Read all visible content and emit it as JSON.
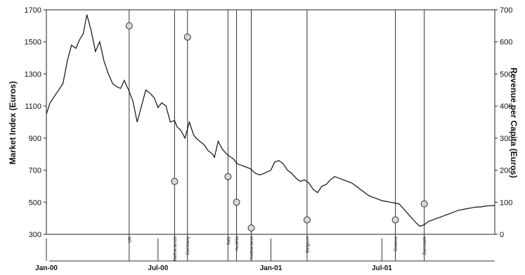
{
  "chart_data": {
    "type": "line",
    "title": "",
    "y_left": {
      "label": "Market Index (Euros)",
      "ticks": [
        "1700",
        "1500",
        "1300",
        "1100",
        "900",
        "700",
        "500",
        "300"
      ],
      "range": [
        300,
        1700
      ]
    },
    "y_right": {
      "label": "Revenue per Capita (Euros)",
      "ticks": [
        "700",
        "600",
        "500",
        "400",
        "300",
        "200",
        "100",
        "0"
      ],
      "range": [
        0,
        700
      ]
    },
    "x_labels": [
      "Jan-00",
      "Jul-00",
      "Jan-01",
      "Jul-01"
    ],
    "x_range": [
      "2000-01-01",
      "2002-01-01"
    ],
    "grid": false,
    "series": [
      {
        "axis": "left",
        "color": "#000000",
        "points": [
          [
            "2000-01-01",
            1050
          ],
          [
            "2000-01-07",
            1120
          ],
          [
            "2000-01-14",
            1160
          ],
          [
            "2000-01-21",
            1200
          ],
          [
            "2000-01-28",
            1240
          ],
          [
            "2000-02-04",
            1380
          ],
          [
            "2000-02-11",
            1480
          ],
          [
            "2000-02-18",
            1460
          ],
          [
            "2000-02-25",
            1520
          ],
          [
            "2000-03-01",
            1550
          ],
          [
            "2000-03-07",
            1670
          ],
          [
            "2000-03-14",
            1570
          ],
          [
            "2000-03-21",
            1440
          ],
          [
            "2000-03-28",
            1500
          ],
          [
            "2000-04-04",
            1380
          ],
          [
            "2000-04-11",
            1300
          ],
          [
            "2000-04-18",
            1240
          ],
          [
            "2000-04-25",
            1220
          ],
          [
            "2000-05-01",
            1210
          ],
          [
            "2000-05-07",
            1260
          ],
          [
            "2000-05-14",
            1200
          ],
          [
            "2000-05-21",
            1130
          ],
          [
            "2000-05-28",
            1000
          ],
          [
            "2000-06-04",
            1100
          ],
          [
            "2000-06-11",
            1200
          ],
          [
            "2000-06-18",
            1180
          ],
          [
            "2000-06-25",
            1150
          ],
          [
            "2000-07-01",
            1090
          ],
          [
            "2000-07-07",
            1120
          ],
          [
            "2000-07-14",
            1100
          ],
          [
            "2000-07-21",
            1000
          ],
          [
            "2000-07-28",
            1010
          ],
          [
            "2000-08-01",
            970
          ],
          [
            "2000-08-07",
            950
          ],
          [
            "2000-08-14",
            900
          ],
          [
            "2000-08-21",
            1000
          ],
          [
            "2000-08-28",
            920
          ],
          [
            "2000-09-01",
            900
          ],
          [
            "2000-09-07",
            880
          ],
          [
            "2000-09-14",
            860
          ],
          [
            "2000-09-21",
            820
          ],
          [
            "2000-09-28",
            800
          ],
          [
            "2000-10-01",
            780
          ],
          [
            "2000-10-07",
            880
          ],
          [
            "2000-10-14",
            830
          ],
          [
            "2000-10-21",
            800
          ],
          [
            "2000-10-28",
            780
          ],
          [
            "2000-11-01",
            770
          ],
          [
            "2000-11-07",
            740
          ],
          [
            "2000-11-14",
            730
          ],
          [
            "2000-11-21",
            720
          ],
          [
            "2000-11-28",
            710
          ],
          [
            "2000-12-01",
            700
          ],
          [
            "2000-12-07",
            680
          ],
          [
            "2000-12-14",
            670
          ],
          [
            "2000-12-21",
            680
          ],
          [
            "2001-01-01",
            700
          ],
          [
            "2001-01-07",
            750
          ],
          [
            "2001-01-14",
            760
          ],
          [
            "2001-01-21",
            740
          ],
          [
            "2001-01-28",
            700
          ],
          [
            "2001-02-04",
            680
          ],
          [
            "2001-02-11",
            650
          ],
          [
            "2001-02-18",
            630
          ],
          [
            "2001-02-25",
            640
          ],
          [
            "2001-03-04",
            620
          ],
          [
            "2001-03-11",
            580
          ],
          [
            "2001-03-18",
            560
          ],
          [
            "2001-03-25",
            600
          ],
          [
            "2001-04-01",
            610
          ],
          [
            "2001-04-08",
            640
          ],
          [
            "2001-04-15",
            660
          ],
          [
            "2001-04-22",
            650
          ],
          [
            "2001-04-29",
            640
          ],
          [
            "2001-05-06",
            630
          ],
          [
            "2001-05-13",
            620
          ],
          [
            "2001-05-20",
            600
          ],
          [
            "2001-05-27",
            580
          ],
          [
            "2001-06-03",
            560
          ],
          [
            "2001-06-10",
            540
          ],
          [
            "2001-06-17",
            530
          ],
          [
            "2001-06-24",
            520
          ],
          [
            "2001-07-01",
            510
          ],
          [
            "2001-07-08",
            505
          ],
          [
            "2001-07-15",
            500
          ],
          [
            "2001-07-22",
            495
          ],
          [
            "2001-07-29",
            490
          ],
          [
            "2001-08-05",
            460
          ],
          [
            "2001-08-12",
            430
          ],
          [
            "2001-08-19",
            400
          ],
          [
            "2001-08-26",
            370
          ],
          [
            "2001-09-01",
            350
          ],
          [
            "2001-09-08",
            360
          ],
          [
            "2001-09-15",
            380
          ],
          [
            "2001-09-22",
            390
          ],
          [
            "2001-09-29",
            400
          ],
          [
            "2001-10-06",
            410
          ],
          [
            "2001-10-13",
            420
          ],
          [
            "2001-10-20",
            430
          ],
          [
            "2001-10-27",
            440
          ],
          [
            "2001-11-03",
            450
          ],
          [
            "2001-11-10",
            455
          ],
          [
            "2001-11-17",
            460
          ],
          [
            "2001-11-24",
            465
          ],
          [
            "2001-12-01",
            470
          ],
          [
            "2001-12-08",
            470
          ],
          [
            "2001-12-15",
            475
          ],
          [
            "2001-12-22",
            478
          ],
          [
            "2002-01-01",
            480
          ]
        ]
      }
    ],
    "events": [
      {
        "label": "UK",
        "date": "2000-05-15",
        "revenue": 650
      },
      {
        "label": "Netherlands",
        "date": "2000-07-28",
        "revenue": 165
      },
      {
        "label": "Germany",
        "date": "2000-08-18",
        "revenue": 615
      },
      {
        "label": "Italy",
        "date": "2000-10-23",
        "revenue": 180
      },
      {
        "label": "Austria",
        "date": "2000-11-06",
        "revenue": 100
      },
      {
        "label": "Switzerland",
        "date": "2000-11-30",
        "revenue": 20
      },
      {
        "label": "Belgium",
        "date": "2001-03-01",
        "revenue": 45
      },
      {
        "label": "Greece",
        "date": "2001-07-23",
        "revenue": 45
      },
      {
        "label": "Denmark",
        "date": "2001-09-08",
        "revenue": 95
      }
    ]
  }
}
